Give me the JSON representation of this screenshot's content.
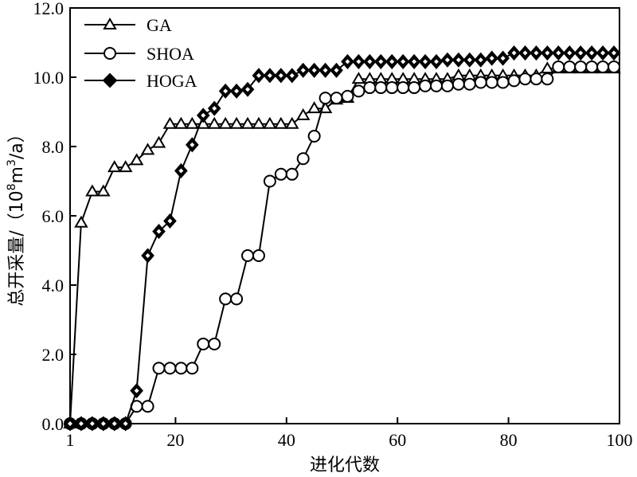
{
  "chart_data": {
    "type": "line",
    "title": "",
    "xlabel": "进化代数",
    "ylabel": {
      "prefix": "总开采量/（10",
      "exp1": "8",
      "mid": "m",
      "exp2": "3",
      "suffix": "/a）"
    },
    "xlim": [
      1,
      100
    ],
    "ylim": [
      0,
      12
    ],
    "x_ticks": [
      {
        "value": 1,
        "label": "1"
      },
      {
        "value": 20,
        "label": "20"
      },
      {
        "value": 40,
        "label": "40"
      },
      {
        "value": 60,
        "label": "60"
      },
      {
        "value": 80,
        "label": "80"
      },
      {
        "value": 100,
        "label": "100"
      }
    ],
    "y_ticks": [
      {
        "value": 0,
        "label": "0.0"
      },
      {
        "value": 2,
        "label": "2.0"
      },
      {
        "value": 4,
        "label": "4.0"
      },
      {
        "value": 6,
        "label": "6.0"
      },
      {
        "value": 8,
        "label": "8.0"
      },
      {
        "value": 10,
        "label": "10.0"
      },
      {
        "value": 12,
        "label": "12.0"
      }
    ],
    "grid": false,
    "legend_position": "top-left",
    "series": [
      {
        "name": "GA",
        "marker": "triangle",
        "color": "#000000",
        "points": [
          [
            1,
            0.0
          ],
          [
            3,
            5.8
          ],
          [
            5,
            6.7
          ],
          [
            7,
            6.7
          ],
          [
            9,
            7.4
          ],
          [
            11,
            7.4
          ],
          [
            13,
            7.6
          ],
          [
            15,
            7.9
          ],
          [
            17,
            8.1
          ],
          [
            19,
            8.65
          ],
          [
            21,
            8.65
          ],
          [
            23,
            8.65
          ],
          [
            25,
            8.65
          ],
          [
            27,
            8.65
          ],
          [
            29,
            8.65
          ],
          [
            31,
            8.65
          ],
          [
            33,
            8.65
          ],
          [
            35,
            8.65
          ],
          [
            37,
            8.65
          ],
          [
            39,
            8.65
          ],
          [
            41,
            8.65
          ],
          [
            43,
            8.9
          ],
          [
            45,
            9.1
          ],
          [
            47,
            9.1
          ],
          [
            49,
            9.35
          ],
          [
            51,
            9.4
          ],
          [
            53,
            9.95
          ],
          [
            55,
            9.95
          ],
          [
            57,
            9.95
          ],
          [
            59,
            9.95
          ],
          [
            61,
            9.95
          ],
          [
            63,
            9.95
          ],
          [
            65,
            9.95
          ],
          [
            67,
            9.95
          ],
          [
            69,
            9.95
          ],
          [
            71,
            10.05
          ],
          [
            73,
            10.05
          ],
          [
            75,
            10.05
          ],
          [
            77,
            10.05
          ],
          [
            79,
            10.05
          ],
          [
            81,
            10.05
          ],
          [
            83,
            10.05
          ],
          [
            85,
            10.05
          ],
          [
            87,
            10.25
          ],
          [
            89,
            10.25
          ],
          [
            91,
            10.25
          ],
          [
            93,
            10.25
          ],
          [
            95,
            10.25
          ],
          [
            97,
            10.25
          ],
          [
            99,
            10.25
          ]
        ]
      },
      {
        "name": "SHOA",
        "marker": "circle",
        "color": "#000000",
        "points": [
          [
            1,
            0.0
          ],
          [
            3,
            0.0
          ],
          [
            5,
            0.0
          ],
          [
            7,
            0.0
          ],
          [
            9,
            0.0
          ],
          [
            11,
            0.0
          ],
          [
            13,
            0.5
          ],
          [
            15,
            0.5
          ],
          [
            17,
            1.6
          ],
          [
            19,
            1.6
          ],
          [
            21,
            1.6
          ],
          [
            23,
            1.6
          ],
          [
            25,
            2.3
          ],
          [
            27,
            2.3
          ],
          [
            29,
            3.6
          ],
          [
            31,
            3.6
          ],
          [
            33,
            4.85
          ],
          [
            35,
            4.85
          ],
          [
            37,
            7.0
          ],
          [
            39,
            7.2
          ],
          [
            41,
            7.2
          ],
          [
            43,
            7.65
          ],
          [
            45,
            8.3
          ],
          [
            47,
            9.4
          ],
          [
            49,
            9.4
          ],
          [
            51,
            9.45
          ],
          [
            53,
            9.6
          ],
          [
            55,
            9.7
          ],
          [
            57,
            9.7
          ],
          [
            59,
            9.7
          ],
          [
            61,
            9.7
          ],
          [
            63,
            9.7
          ],
          [
            65,
            9.75
          ],
          [
            67,
            9.75
          ],
          [
            69,
            9.75
          ],
          [
            71,
            9.8
          ],
          [
            73,
            9.8
          ],
          [
            75,
            9.85
          ],
          [
            77,
            9.85
          ],
          [
            79,
            9.85
          ],
          [
            81,
            9.9
          ],
          [
            83,
            9.95
          ],
          [
            85,
            9.95
          ],
          [
            87,
            9.95
          ],
          [
            89,
            10.3
          ],
          [
            91,
            10.3
          ],
          [
            93,
            10.3
          ],
          [
            95,
            10.3
          ],
          [
            97,
            10.3
          ],
          [
            99,
            10.3
          ]
        ]
      },
      {
        "name": "HOGA",
        "marker": "diamond",
        "color": "#000000",
        "points": [
          [
            1,
            0.0
          ],
          [
            3,
            0.0
          ],
          [
            5,
            0.0
          ],
          [
            7,
            0.0
          ],
          [
            9,
            0.0
          ],
          [
            11,
            0.0
          ],
          [
            13,
            0.95
          ],
          [
            15,
            4.85
          ],
          [
            17,
            5.55
          ],
          [
            19,
            5.85
          ],
          [
            21,
            7.3
          ],
          [
            23,
            8.05
          ],
          [
            25,
            8.9
          ],
          [
            27,
            9.1
          ],
          [
            29,
            9.6
          ],
          [
            31,
            9.6
          ],
          [
            33,
            9.65
          ],
          [
            35,
            10.05
          ],
          [
            37,
            10.05
          ],
          [
            39,
            10.05
          ],
          [
            41,
            10.05
          ],
          [
            43,
            10.2
          ],
          [
            45,
            10.2
          ],
          [
            47,
            10.2
          ],
          [
            49,
            10.2
          ],
          [
            51,
            10.45
          ],
          [
            53,
            10.45
          ],
          [
            55,
            10.45
          ],
          [
            57,
            10.45
          ],
          [
            59,
            10.45
          ],
          [
            61,
            10.45
          ],
          [
            63,
            10.45
          ],
          [
            65,
            10.45
          ],
          [
            67,
            10.45
          ],
          [
            69,
            10.5
          ],
          [
            71,
            10.5
          ],
          [
            73,
            10.5
          ],
          [
            75,
            10.5
          ],
          [
            77,
            10.55
          ],
          [
            79,
            10.55
          ],
          [
            81,
            10.7
          ],
          [
            83,
            10.7
          ],
          [
            85,
            10.7
          ],
          [
            87,
            10.7
          ],
          [
            89,
            10.7
          ],
          [
            91,
            10.7
          ],
          [
            93,
            10.7
          ],
          [
            95,
            10.7
          ],
          [
            97,
            10.7
          ],
          [
            99,
            10.7
          ]
        ]
      }
    ]
  }
}
